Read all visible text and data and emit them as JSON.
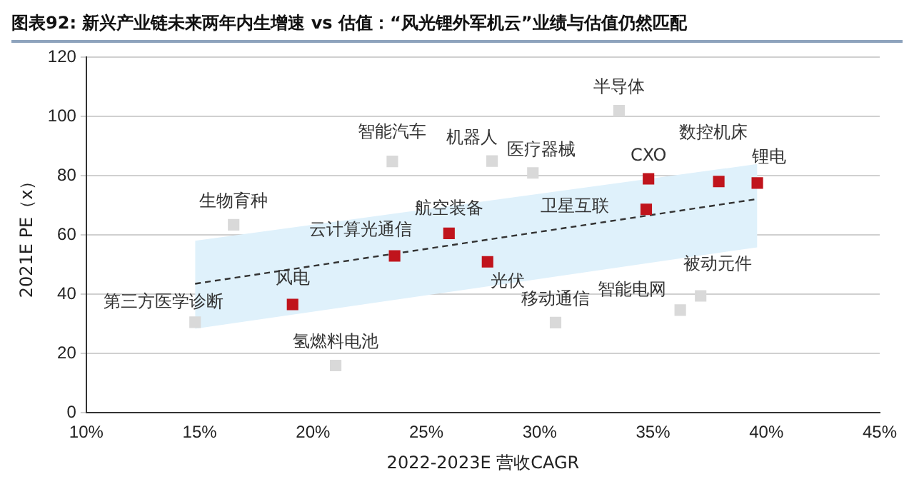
{
  "chart_data": {
    "type": "scatter",
    "title": "图表92:  新兴产业链未来两年内生增速 vs 估值：“风光锂外军机云”业绩与估值仍然匹配",
    "xlabel": "2022-2023E 营收CAGR",
    "ylabel": "2021E PE（x）",
    "series": [
      {
        "type": "line",
        "color": "#333333",
        "line_style": "dashed",
        "marker": "none",
        "x": [
          14.8,
          39.6
        ],
        "values": [
          43.6,
          72.2
        ],
        "lower": [
          28.4,
          55.9
        ],
        "upper": [
          58.1,
          84.0
        ]
      },
      {
        "color": "#d9d9d9",
        "marker": "square",
        "x": [
          14.8,
          16.5,
          21.0,
          23.5,
          27.9,
          29.7,
          30.7,
          33.5,
          36.2,
          37.1
        ],
        "values": [
          30.6,
          63.5,
          16.0,
          84.9,
          85.0,
          81.0,
          30.5,
          102,
          34.7,
          39.5
        ]
      },
      {
        "color": "#c0141c",
        "marker": "square",
        "x": [
          19.1,
          23.6,
          26.0,
          27.7,
          34.8,
          34.7,
          37.9,
          39.6
        ],
        "values": [
          36.6,
          53.0,
          60.6,
          51.0,
          79.0,
          68.7,
          78.1,
          77.6
        ]
      }
    ],
    "annotations": [
      {
        "text": "第三方医学诊断",
        "x": 14.8,
        "y": 30.6
      },
      {
        "text": "生物育种",
        "x": 16.5,
        "y": 63.5
      },
      {
        "text": "氢燃料电池",
        "x": 21.0,
        "y": 16.0
      },
      {
        "text": "智能汽车",
        "x": 23.5,
        "y": 84.9
      },
      {
        "text": "机器人",
        "x": 27.9,
        "y": 85.0
      },
      {
        "text": "医疗器械",
        "x": 29.7,
        "y": 81.0
      },
      {
        "text": "移动通信",
        "x": 30.7,
        "y": 30.5
      },
      {
        "text": "半导体",
        "x": 33.5,
        "y": 102
      },
      {
        "text": "智能电网",
        "x": 36.2,
        "y": 34.7
      },
      {
        "text": "被动元件",
        "x": 37.1,
        "y": 39.5
      },
      {
        "text": "风电",
        "x": 19.1,
        "y": 36.6
      },
      {
        "text": "云计算光通信",
        "x": 23.6,
        "y": 53.0
      },
      {
        "text": "航空装备",
        "x": 26.0,
        "y": 60.6
      },
      {
        "text": "光伏",
        "x": 27.7,
        "y": 51.0
      },
      {
        "text": "CXO",
        "x": 34.8,
        "y": 79.0
      },
      {
        "text": "卫星互联",
        "x": 34.7,
        "y": 68.7
      },
      {
        "text": "数控机床",
        "x": 37.9,
        "y": 78.1
      },
      {
        "text": "锂电",
        "x": 39.6,
        "y": 77.6
      }
    ],
    "xlim": [
      10,
      45
    ],
    "xticks": [
      {
        "value": 10,
        "label": "10%"
      },
      {
        "value": 15,
        "label": "15%"
      },
      {
        "value": 20,
        "label": "20%"
      },
      {
        "value": 25,
        "label": "25%"
      },
      {
        "value": 30,
        "label": "30%"
      },
      {
        "value": 35,
        "label": "35%"
      },
      {
        "value": 40,
        "label": "40%"
      },
      {
        "value": 45,
        "label": "45%"
      }
    ],
    "ylim": [
      0,
      120
    ],
    "yticks": [
      0,
      20,
      40,
      60,
      80,
      100,
      120
    ],
    "grid": "y",
    "legend": false
  }
}
